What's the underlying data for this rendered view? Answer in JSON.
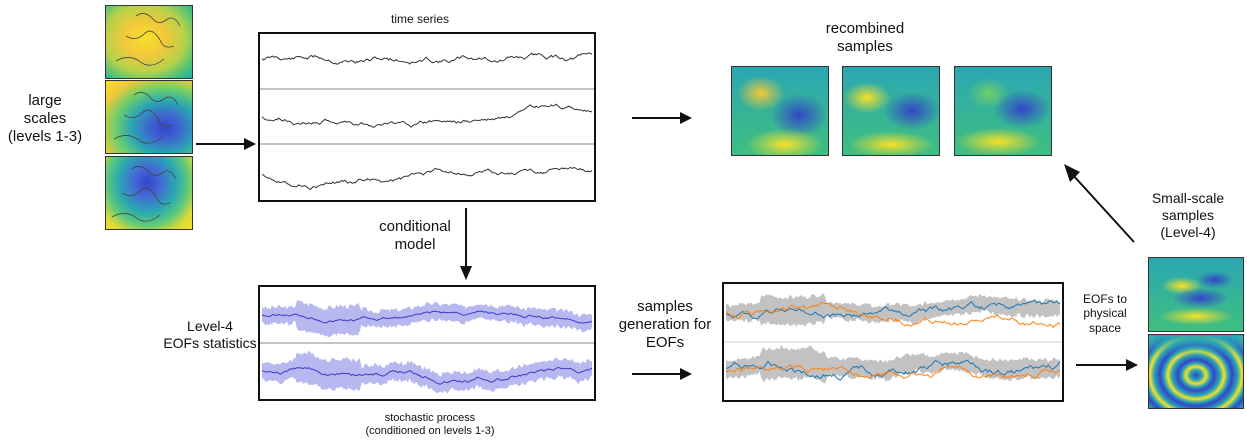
{
  "labels": {
    "large_scales": "large\nscales\n(levels 1-3)",
    "time_series": "time series",
    "recombined": "recombined\nsamples",
    "conditional_model": "conditional\nmodel",
    "level4_stats": "Level-4\nEOFs statistics",
    "stochastic": "stochastic process\n(conditioned on levels 1-3)",
    "samples_generation": "samples\ngeneration for\nEOFs",
    "eofs_physical": "EOFs to\nphysical\nspace",
    "small_scale": "Small-scale\nsamples\n(Level-4)"
  },
  "colors": {
    "yellow": "#f5e12a",
    "green": "#3fbf7f",
    "teal": "#2aa7b3",
    "blue": "#3346c8",
    "ts_line": "#333333",
    "stat_line": "#3a3ac8",
    "stat_band": "#b8b8f0",
    "sample_band": "#c2c2c2",
    "sample_blue": "#1f77b4",
    "sample_orange": "#ff7f0e"
  }
}
